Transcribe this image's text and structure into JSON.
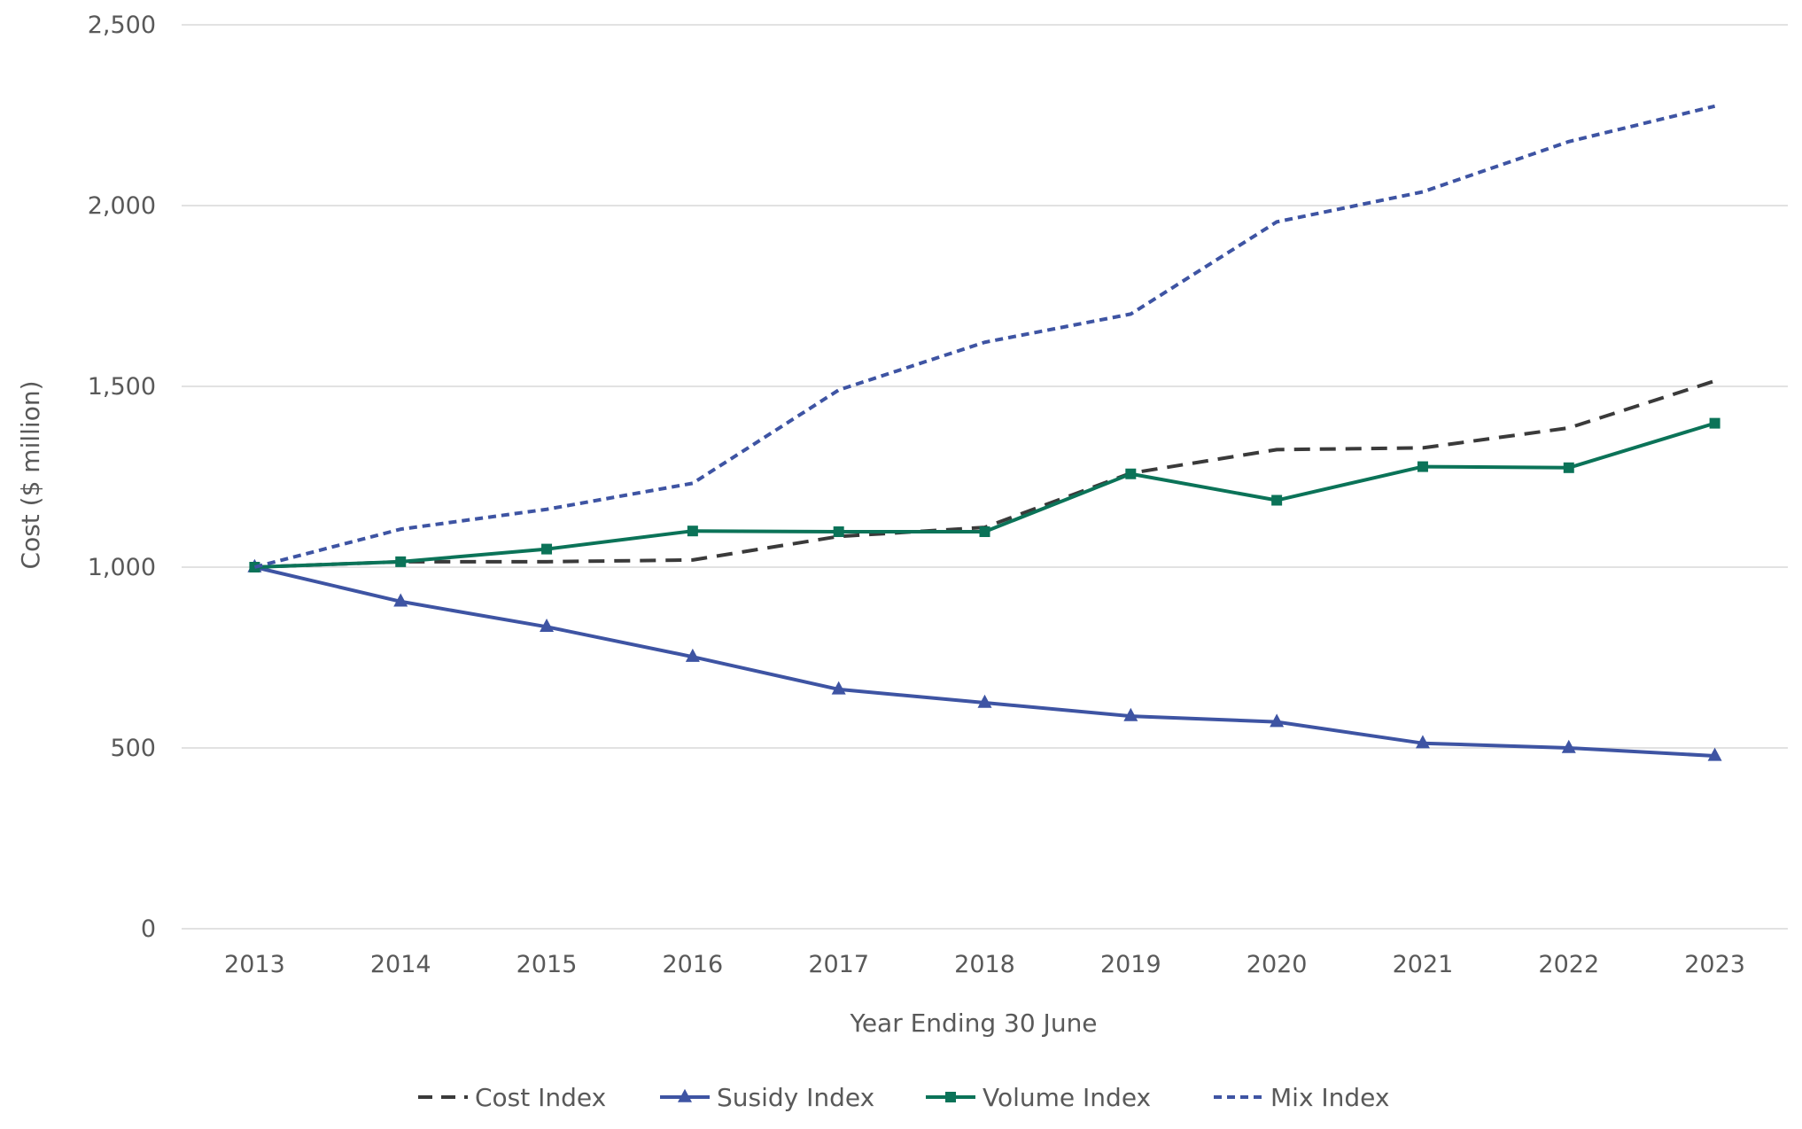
{
  "chart_data": {
    "type": "line",
    "title": "",
    "xlabel": "Year Ending 30 June",
    "ylabel": "Cost ($ million)",
    "ylim": [
      0,
      2500
    ],
    "yticks": [
      0,
      500,
      1000,
      1500,
      2000,
      2500
    ],
    "ytick_labels": [
      "0",
      "500",
      "1,000",
      "1,500",
      "2,000",
      "2,500"
    ],
    "categories": [
      "2013",
      "2014",
      "2015",
      "2016",
      "2017",
      "2018",
      "2019",
      "2020",
      "2021",
      "2022",
      "2023"
    ],
    "grid": "horizontal",
    "legend_position": "bottom",
    "series": [
      {
        "name": "Cost Index",
        "color": "#3a3a3a",
        "line_style": "long-dash",
        "marker": "none",
        "values": [
          1000,
          1015,
          1015,
          1020,
          1085,
          1110,
          1260,
          1325,
          1330,
          1385,
          1515
        ]
      },
      {
        "name": "Susidy Index",
        "color": "#3e54a3",
        "line_style": "solid",
        "marker": "triangle",
        "values": [
          1000,
          905,
          835,
          752,
          662,
          625,
          588,
          572,
          513,
          500,
          478
        ]
      },
      {
        "name": "Volume Index",
        "color": "#0b7358",
        "line_style": "solid",
        "marker": "square",
        "values": [
          1000,
          1015,
          1050,
          1100,
          1098,
          1098,
          1258,
          1185,
          1278,
          1275,
          1398
        ]
      },
      {
        "name": "Mix Index",
        "color": "#3e54a3",
        "line_style": "short-dash",
        "marker": "none",
        "values": [
          1000,
          1105,
          1160,
          1232,
          1490,
          1622,
          1700,
          1955,
          2038,
          2177,
          2275
        ]
      }
    ]
  }
}
